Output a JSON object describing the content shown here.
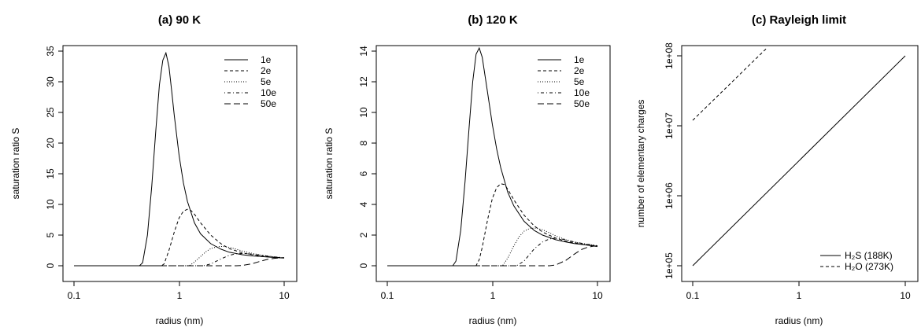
{
  "chart_data": [
    {
      "type": "line",
      "title": "(a) 90 K",
      "xlabel": "radius (nm)",
      "ylabel": "saturation ratio S",
      "xscale": "log",
      "xlim": [
        0.1,
        10
      ],
      "ylim": [
        0,
        35
      ],
      "xticks": [
        "0.1",
        "1",
        "10"
      ],
      "yticks": [
        "0",
        "5",
        "10",
        "15",
        "20",
        "25",
        "30",
        "35"
      ],
      "legend": "top-right",
      "grid": false,
      "series": [
        {
          "name": "1e",
          "style": "solid",
          "x": [
            0.1,
            0.3,
            0.42,
            0.45,
            0.5,
            0.55,
            0.6,
            0.65,
            0.7,
            0.75,
            0.8,
            0.85,
            0.9,
            1.0,
            1.1,
            1.2,
            1.4,
            1.6,
            2.0,
            2.5,
            3.0,
            4.0,
            5.0,
            6.0,
            8.0,
            10.0
          ],
          "y": [
            0,
            0,
            0,
            0.5,
            5,
            13,
            22,
            29.5,
            33.5,
            34.7,
            32.5,
            28.5,
            24.5,
            18,
            13.5,
            10.5,
            7,
            5.2,
            3.6,
            2.7,
            2.2,
            1.8,
            1.6,
            1.5,
            1.35,
            1.25
          ]
        },
        {
          "name": "2e",
          "style": "dashed",
          "x": [
            0.1,
            0.5,
            0.68,
            0.72,
            0.8,
            0.9,
            1.0,
            1.1,
            1.2,
            1.3,
            1.4,
            1.6,
            2.0,
            2.5,
            3.0,
            4.0,
            5.0,
            6.0,
            8.0,
            10.0
          ],
          "y": [
            0,
            0,
            0,
            0.3,
            2.5,
            5.5,
            7.8,
            8.9,
            9.2,
            9.0,
            8.4,
            7.0,
            5.0,
            3.6,
            2.8,
            2.1,
            1.8,
            1.6,
            1.4,
            1.3
          ]
        },
        {
          "name": "5e",
          "style": "dotted",
          "x": [
            0.1,
            1.0,
            1.25,
            1.4,
            1.6,
            1.8,
            2.0,
            2.3,
            2.6,
            3.0,
            3.5,
            4.0,
            5.0,
            6.0,
            8.0,
            10.0
          ],
          "y": [
            0,
            0,
            0,
            0.6,
            1.5,
            2.3,
            2.8,
            3.1,
            3.15,
            3.0,
            2.7,
            2.4,
            2.0,
            1.75,
            1.45,
            1.3
          ]
        },
        {
          "name": "10e",
          "style": "dot-dash",
          "x": [
            0.1,
            1.5,
            1.7,
            2.0,
            2.5,
            3.0,
            3.5,
            4.0,
            5.0,
            6.0,
            8.0,
            10.0
          ],
          "y": [
            0,
            0,
            0,
            0.3,
            1.1,
            1.7,
            1.95,
            2.0,
            1.9,
            1.7,
            1.45,
            1.3
          ]
        },
        {
          "name": "50e",
          "style": "long-dash",
          "x": [
            0.1,
            3.0,
            3.5,
            4.0,
            5.0,
            6.0,
            7.0,
            8.0,
            9.0,
            10.0
          ],
          "y": [
            0,
            0,
            0,
            0.05,
            0.35,
            0.75,
            1.05,
            1.2,
            1.27,
            1.3
          ]
        }
      ]
    },
    {
      "type": "line",
      "title": "(b) 120 K",
      "xlabel": "radius (nm)",
      "ylabel": "saturation ratio S",
      "xscale": "log",
      "xlim": [
        0.1,
        10
      ],
      "ylim": [
        0,
        14
      ],
      "xticks": [
        "0.1",
        "1",
        "10"
      ],
      "yticks": [
        "0",
        "2",
        "4",
        "6",
        "8",
        "10",
        "12",
        "14"
      ],
      "legend": "top-right",
      "grid": false,
      "series": [
        {
          "name": "1e",
          "style": "solid",
          "x": [
            0.1,
            0.3,
            0.42,
            0.45,
            0.5,
            0.55,
            0.6,
            0.65,
            0.7,
            0.75,
            0.8,
            0.9,
            1.0,
            1.1,
            1.2,
            1.4,
            1.6,
            2.0,
            2.5,
            3.0,
            4.0,
            5.0,
            6.0,
            8.0,
            10.0
          ],
          "y": [
            0,
            0,
            0,
            0.3,
            2.3,
            5.5,
            9,
            12,
            13.8,
            14.2,
            13.6,
            11.3,
            9.2,
            7.6,
            6.4,
            4.8,
            3.9,
            2.9,
            2.3,
            2.0,
            1.7,
            1.55,
            1.45,
            1.35,
            1.25
          ]
        },
        {
          "name": "2e",
          "style": "dashed",
          "x": [
            0.1,
            0.5,
            0.7,
            0.75,
            0.8,
            0.9,
            1.0,
            1.1,
            1.2,
            1.3,
            1.4,
            1.6,
            2.0,
            2.5,
            3.0,
            4.0,
            5.0,
            6.0,
            8.0,
            10.0
          ],
          "y": [
            0,
            0,
            0,
            0.4,
            1.2,
            3.0,
            4.4,
            5.1,
            5.35,
            5.3,
            5.0,
            4.3,
            3.3,
            2.6,
            2.2,
            1.8,
            1.6,
            1.5,
            1.35,
            1.3
          ]
        },
        {
          "name": "5e",
          "style": "dotted",
          "x": [
            0.1,
            1.0,
            1.25,
            1.4,
            1.6,
            1.8,
            2.0,
            2.3,
            2.6,
            3.0,
            3.5,
            4.0,
            5.0,
            6.0,
            8.0,
            10.0
          ],
          "y": [
            0,
            0,
            0,
            0.5,
            1.3,
            1.9,
            2.25,
            2.45,
            2.45,
            2.35,
            2.15,
            1.95,
            1.7,
            1.55,
            1.4,
            1.3
          ]
        },
        {
          "name": "10e",
          "style": "dot-dash",
          "x": [
            0.1,
            1.5,
            1.7,
            2.0,
            2.5,
            3.0,
            3.5,
            4.0,
            5.0,
            6.0,
            8.0,
            10.0
          ],
          "y": [
            0,
            0,
            0,
            0.3,
            1.1,
            1.55,
            1.75,
            1.8,
            1.7,
            1.55,
            1.4,
            1.3
          ]
        },
        {
          "name": "50e",
          "style": "long-dash",
          "x": [
            0.1,
            3.0,
            3.5,
            4.0,
            5.0,
            6.0,
            7.0,
            8.0,
            9.0,
            10.0
          ],
          "y": [
            0,
            0,
            0,
            0.05,
            0.35,
            0.75,
            1.05,
            1.2,
            1.27,
            1.3
          ]
        }
      ]
    },
    {
      "type": "line",
      "title": "(c) Rayleigh limit",
      "xlabel": "radius (nm)",
      "ylabel": "number of elementary charges",
      "xscale": "log",
      "yscale": "log",
      "xlim": [
        0.1,
        10
      ],
      "ylim": [
        100000,
        100000000
      ],
      "xticks": [
        "0.1",
        "1",
        "10"
      ],
      "yticks": [
        "1e+05",
        "1e+06",
        "1e+07",
        "1e+08"
      ],
      "legend": "bottom-right",
      "grid": false,
      "series": [
        {
          "name": "H₂S (188K)",
          "style": "solid",
          "x": [
            0.1,
            10
          ],
          "y": [
            100000,
            100000000
          ]
        },
        {
          "name": "H₂O (273K)",
          "style": "dashed",
          "x": [
            0.1,
            0.5
          ],
          "y": [
            12000000,
            130000000
          ]
        }
      ]
    }
  ]
}
